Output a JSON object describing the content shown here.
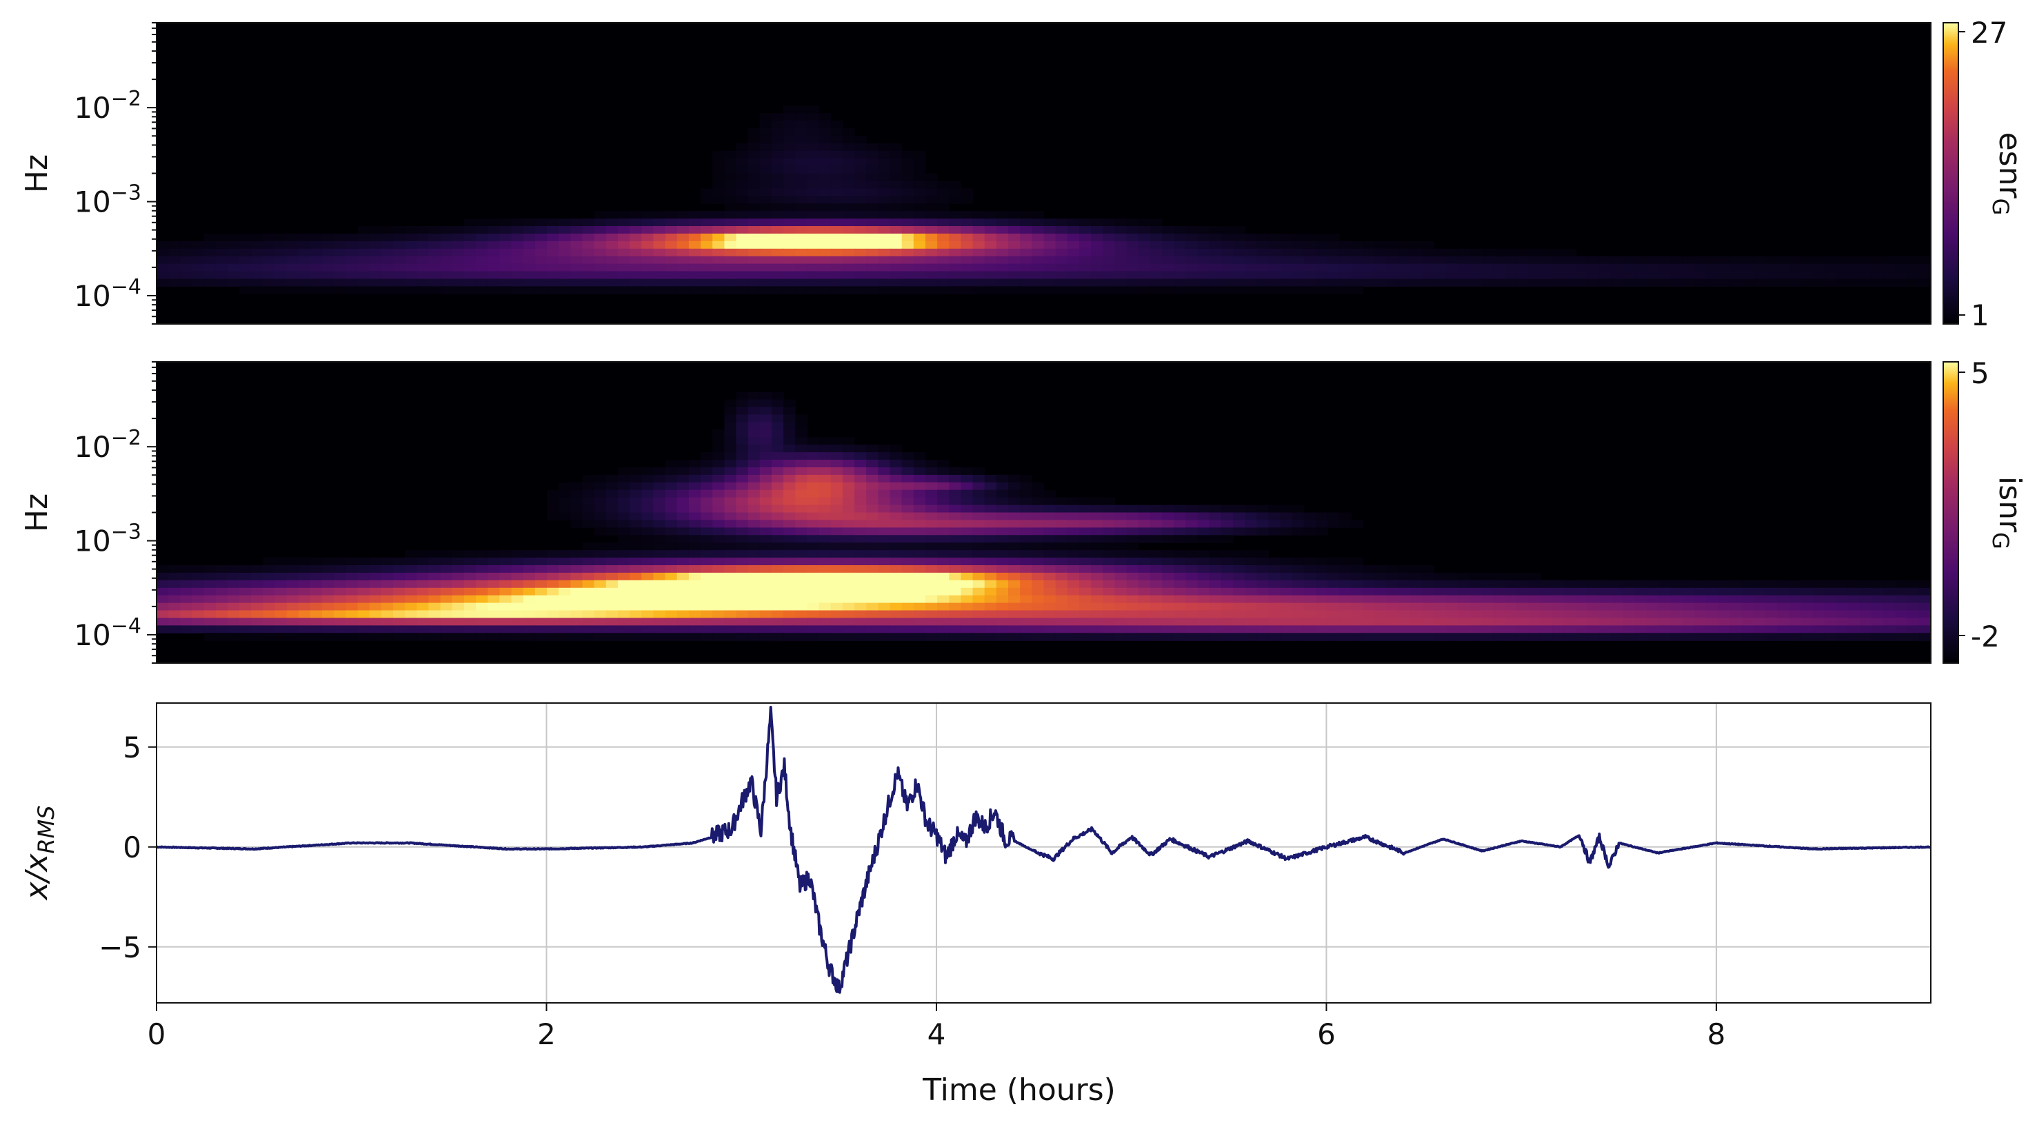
{
  "colors": {
    "background": "#ffffff",
    "panel_background": "#000004",
    "line": "#1a1a6e",
    "grid": "#c8c8c8",
    "axis": "#111111",
    "colormap": "inferno"
  },
  "chart_data": [
    {
      "type": "heatmap",
      "panel": "top",
      "ylabel": "Hz",
      "y_scale": "log",
      "ylim": [
        5e-05,
        0.08
      ],
      "xlim": [
        0,
        9.1
      ],
      "y_ticks": [
        {
          "value": 0.01,
          "base": "10",
          "exp": "−2"
        },
        {
          "value": 0.001,
          "base": "10",
          "exp": "−3"
        },
        {
          "value": 0.0001,
          "base": "10",
          "exp": "−4"
        }
      ],
      "colorbar": {
        "label": "esnr",
        "label_sub": "G",
        "min": 1,
        "max": 27,
        "ticks": [
          "27",
          "1"
        ]
      },
      "blobs": [
        {
          "t": 3.4,
          "f": 0.0004,
          "st": 0.75,
          "sf": 0.11,
          "amp": 27
        },
        {
          "t": 3.1,
          "f": 0.00028,
          "st": 1.5,
          "sf": 0.12,
          "amp": 9
        },
        {
          "t": 4.5,
          "f": 0.00018,
          "st": 3.0,
          "sf": 0.1,
          "amp": 4
        },
        {
          "t": 2.0,
          "f": 0.00018,
          "st": 1.6,
          "sf": 0.1,
          "amp": 3
        },
        {
          "t": 3.4,
          "f": 0.0025,
          "st": 0.3,
          "sf": 0.15,
          "amp": 3
        },
        {
          "t": 3.5,
          "f": 0.0012,
          "st": 0.4,
          "sf": 0.1,
          "amp": 2.5
        },
        {
          "t": 3.3,
          "f": 0.006,
          "st": 0.15,
          "sf": 0.15,
          "amp": 1.5
        }
      ]
    },
    {
      "type": "heatmap",
      "panel": "middle",
      "ylabel": "Hz",
      "y_scale": "log",
      "ylim": [
        5e-05,
        0.08
      ],
      "xlim": [
        0,
        9.1
      ],
      "y_ticks": [
        {
          "value": 0.01,
          "base": "10",
          "exp": "−2"
        },
        {
          "value": 0.001,
          "base": "10",
          "exp": "−3"
        },
        {
          "value": 0.0001,
          "base": "10",
          "exp": "−4"
        }
      ],
      "colorbar": {
        "label": "isnr",
        "label_sub": "G",
        "min": -2,
        "max": 5,
        "ticks": [
          "5",
          "-2"
        ]
      },
      "blobs": [
        {
          "t": 3.5,
          "f": 0.0004,
          "st": 1.1,
          "sf": 0.13,
          "amp": 7.0
        },
        {
          "t": 2.2,
          "f": 0.00025,
          "st": 1.6,
          "sf": 0.14,
          "amp": 5.0
        },
        {
          "t": 5.5,
          "f": 0.0002,
          "st": 2.6,
          "sf": 0.12,
          "amp": 4.0
        },
        {
          "t": 1.0,
          "f": 0.00016,
          "st": 1.5,
          "sf": 0.08,
          "amp": 4.0
        },
        {
          "t": 6.5,
          "f": 0.00013,
          "st": 2.5,
          "sf": 0.08,
          "amp": 3.0
        },
        {
          "t": 3.3,
          "f": 0.0025,
          "st": 0.5,
          "sf": 0.18,
          "amp": 4.5
        },
        {
          "t": 3.4,
          "f": 0.005,
          "st": 0.25,
          "sf": 0.15,
          "amp": 3.5
        },
        {
          "t": 4.0,
          "f": 0.0015,
          "st": 0.6,
          "sf": 0.1,
          "amp": 3.0
        },
        {
          "t": 5.0,
          "f": 0.0016,
          "st": 0.5,
          "sf": 0.08,
          "amp": 2.5
        },
        {
          "t": 4.0,
          "f": 0.004,
          "st": 0.2,
          "sf": 0.05,
          "amp": 2.0
        },
        {
          "t": 3.1,
          "f": 0.015,
          "st": 0.1,
          "sf": 0.2,
          "amp": 1.5
        }
      ]
    },
    {
      "type": "line",
      "panel": "bottom",
      "xlabel": "Time (hours)",
      "ylabel": "x/x",
      "ylabel_sub": "RMS",
      "xlim": [
        0,
        9.1
      ],
      "ylim": [
        -7.8,
        7.2
      ],
      "x_ticks": [
        0,
        2,
        4,
        6,
        8
      ],
      "y_ticks": [
        {
          "value": 5,
          "label": "5"
        },
        {
          "value": 0,
          "label": "0"
        },
        {
          "value": -5,
          "label": "−5"
        }
      ],
      "grid": true,
      "x": [
        0,
        0.5,
        1.0,
        1.3,
        1.8,
        2.0,
        2.5,
        2.75,
        2.85,
        2.95,
        3.0,
        3.05,
        3.1,
        3.15,
        3.18,
        3.22,
        3.25,
        3.3,
        3.35,
        3.4,
        3.45,
        3.5,
        3.55,
        3.6,
        3.65,
        3.7,
        3.75,
        3.8,
        3.85,
        3.9,
        3.95,
        4.0,
        4.05,
        4.1,
        4.15,
        4.2,
        4.25,
        4.3,
        4.35,
        4.4,
        4.5,
        4.6,
        4.7,
        4.8,
        4.9,
        5.0,
        5.1,
        5.2,
        5.4,
        5.6,
        5.8,
        6.0,
        6.2,
        6.4,
        6.6,
        6.8,
        7.0,
        7.2,
        7.3,
        7.35,
        7.4,
        7.45,
        7.5,
        7.7,
        8.0,
        8.5,
        9.1
      ],
      "y": [
        0.0,
        -0.1,
        0.2,
        0.2,
        -0.1,
        -0.1,
        0.0,
        0.2,
        0.5,
        0.9,
        2.2,
        3.3,
        0.8,
        6.6,
        2.5,
        4.0,
        1.0,
        -2.0,
        -1.5,
        -4.0,
        -6.0,
        -7.1,
        -5.3,
        -3.3,
        -1.5,
        0.2,
        2.0,
        3.7,
        2.0,
        3.2,
        1.2,
        0.6,
        -0.5,
        0.6,
        0.2,
        1.5,
        1.0,
        1.8,
        0.4,
        0.3,
        -0.2,
        -0.6,
        0.4,
        0.9,
        -0.3,
        0.5,
        -0.4,
        0.4,
        -0.5,
        0.3,
        -0.6,
        0.0,
        0.5,
        -0.3,
        0.4,
        -0.2,
        0.3,
        0.0,
        0.6,
        -0.8,
        0.5,
        -1.0,
        0.2,
        -0.3,
        0.2,
        -0.1,
        0.0
      ]
    }
  ]
}
